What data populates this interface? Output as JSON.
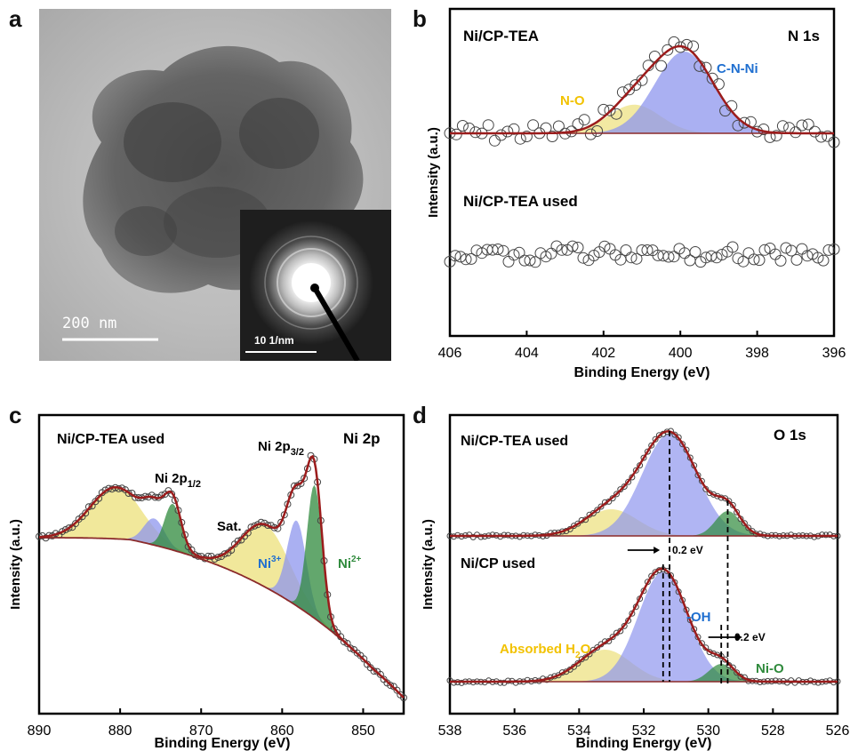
{
  "panels": {
    "a": {
      "letter": "a",
      "scale_bar_label": "200 nm",
      "inset_scale_bar_label": "10 1/nm"
    },
    "b": {
      "letter": "b",
      "element_label": "N 1s",
      "sample_top": "Ni/CP-TEA",
      "sample_bottom": "Ni/CP-TEA used",
      "peak_labels": [
        "N-O",
        "C-N-Ni"
      ]
    },
    "c": {
      "letter": "c",
      "element_label": "Ni 2p",
      "sample": "Ni/CP-TEA used",
      "labels": {
        "p12_main": "Ni 2p",
        "p12_sub": "1/2",
        "p32_main": "Ni 2p",
        "p32_sub": "3/2",
        "sat": "Sat.",
        "ni3": "Ni",
        "ni3_sup": "3+",
        "ni2": "Ni",
        "ni2_sup": "2+"
      }
    },
    "d": {
      "letter": "d",
      "element_label": "O 1s",
      "sample_top": "Ni/CP-TEA used",
      "sample_bottom": "Ni/CP used",
      "labels": {
        "oh": "-OH",
        "absorbed": "Absorbed H",
        "absorbed_sub": "2",
        "absorbed_end": "O",
        "nio": "Ni-O",
        "shift1": "0.2 eV",
        "shift2": "0.2 eV"
      }
    }
  },
  "colors": {
    "fit_line": "#9b1c1c",
    "background_line": "#8b2a2a",
    "yellow_fill": "#ece07a",
    "blue_fill": "#8e95ee",
    "green_fill": "#2f8a3c",
    "label_yellow": "#f2c200",
    "label_blue": "#1f6fd0",
    "label_green": "#2f8a3c"
  },
  "chart_data": [
    {
      "panel": "b",
      "type": "line",
      "xlabel": "Binding Energy (eV)",
      "ylabel": "Intensity (a.u.)",
      "xlim": [
        406,
        396
      ],
      "xticks": [
        406,
        404,
        402,
        400,
        398,
        396
      ],
      "xtick_labels": [
        "406",
        "404",
        "402",
        "400",
        "398",
        "396"
      ],
      "grid": false,
      "series": [
        {
          "name": "C-N-Ni",
          "center": 399.9,
          "height": 1.0,
          "fwhm": 1.8
        },
        {
          "name": "N-O",
          "center": 401.2,
          "height": 0.35,
          "fwhm": 1.6
        }
      ]
    },
    {
      "panel": "c",
      "type": "line",
      "xlabel": "Binding Energy (eV)",
      "ylabel": "Intensity (a.u.)",
      "xlim": [
        890,
        845
      ],
      "xticks": [
        890,
        880,
        870,
        860,
        850
      ],
      "xtick_labels": [
        "890",
        "880",
        "870",
        "860",
        "850"
      ],
      "grid": false,
      "series": [
        {
          "name": "Ni 2p3/2 Ni2+",
          "center": 856.0,
          "height": 1.0
        },
        {
          "name": "Ni 2p3/2 Ni3+",
          "center": 858.2,
          "height": 0.55
        },
        {
          "name": "Sat. 2p3/2",
          "center": 862.0,
          "height": 0.6
        },
        {
          "name": "Ni 2p1/2 Ni2+",
          "center": 873.5,
          "height": 0.55
        },
        {
          "name": "Ni 2p1/2 Ni3+",
          "center": 875.8,
          "height": 0.35
        },
        {
          "name": "Sat. 2p1/2",
          "center": 880.5,
          "height": 0.5
        }
      ]
    },
    {
      "panel": "d",
      "type": "line",
      "xlabel": "Binding Energy (eV)",
      "ylabel": "Intensity (a.u.)",
      "xlim": [
        538,
        526
      ],
      "xticks": [
        538,
        536,
        534,
        532,
        530,
        528,
        526
      ],
      "xtick_labels": [
        "538",
        "536",
        "534",
        "532",
        "530",
        "528",
        "526"
      ],
      "grid": false,
      "series": [
        {
          "name": "Ni/CP-TEA used -OH",
          "center": 531.2,
          "height": 1.0
        },
        {
          "name": "Ni/CP-TEA used Absorbed H2O",
          "center": 533.0,
          "height": 0.28
        },
        {
          "name": "Ni/CP-TEA used Ni-O",
          "center": 529.4,
          "height": 0.2
        },
        {
          "name": "Ni/CP used -OH",
          "center": 531.4,
          "height": 1.0
        },
        {
          "name": "Ni/CP used Absorbed H2O",
          "center": 533.2,
          "height": 0.25
        },
        {
          "name": "Ni/CP used Ni-O",
          "center": 529.6,
          "height": 0.15
        }
      ]
    }
  ]
}
